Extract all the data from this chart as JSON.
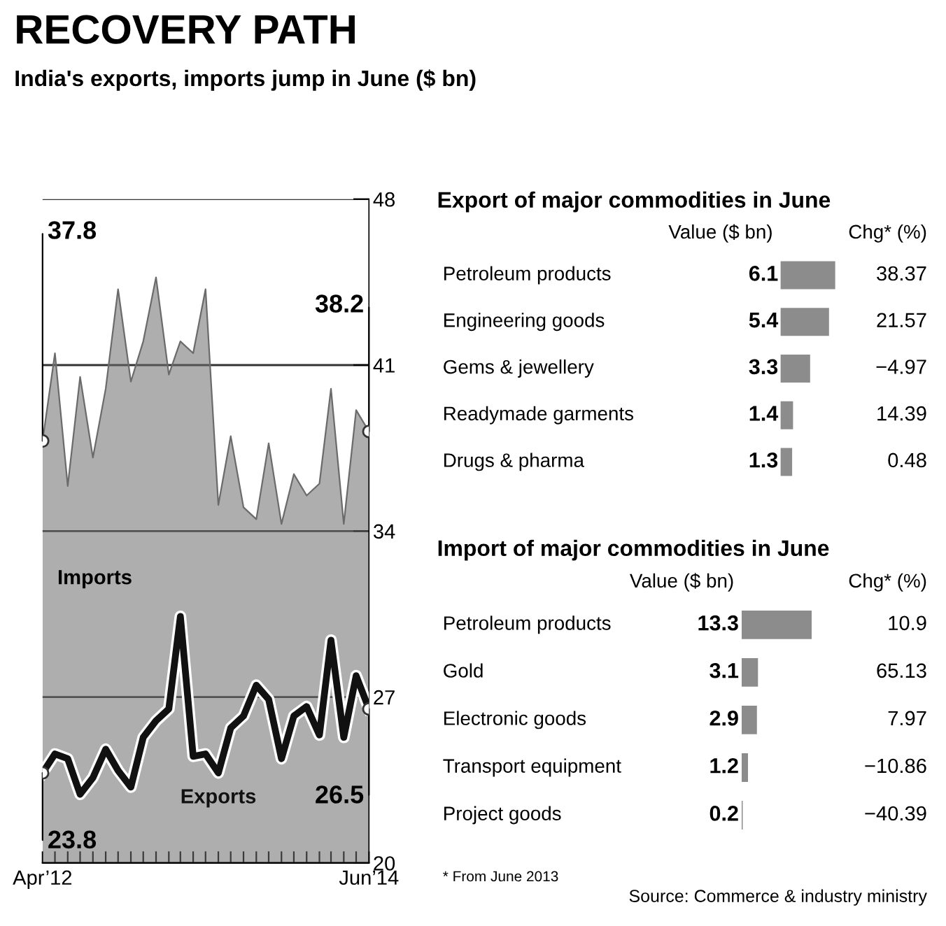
{
  "chart_data": [
    {
      "type": "line",
      "title": "RECOVERY PATH",
      "subtitle": "India's exports, imports jump in June ($ bn)",
      "x": [
        "2012-04",
        "2012-05",
        "2012-06",
        "2012-07",
        "2012-08",
        "2012-09",
        "2012-10",
        "2012-11",
        "2012-12",
        "2013-01",
        "2013-02",
        "2013-03",
        "2013-04",
        "2013-05",
        "2013-06",
        "2013-07",
        "2013-08",
        "2013-09",
        "2013-10",
        "2013-11",
        "2013-12",
        "2014-01",
        "2014-02",
        "2014-03",
        "2014-04",
        "2014-05",
        "2014-06"
      ],
      "series": [
        {
          "name": "Imports",
          "type": "area",
          "color": "#6b6b6b",
          "values": [
            37.8,
            41.5,
            35.9,
            40.5,
            37.1,
            40.0,
            44.2,
            40.3,
            42.0,
            44.7,
            40.6,
            42.0,
            41.5,
            44.2,
            35.1,
            38.0,
            35.0,
            34.5,
            37.7,
            34.3,
            36.4,
            35.5,
            36.0,
            40.0,
            34.3,
            39.1,
            38.2
          ]
        },
        {
          "name": "Exports",
          "type": "line",
          "color": "#111111",
          "values": [
            23.8,
            24.6,
            24.4,
            22.9,
            23.6,
            24.8,
            23.9,
            23.2,
            25.3,
            26.0,
            26.5,
            30.4,
            24.5,
            24.6,
            23.8,
            25.7,
            26.2,
            27.5,
            26.9,
            24.4,
            26.2,
            26.6,
            25.4,
            29.4,
            25.3,
            27.9,
            26.5
          ]
        }
      ],
      "annotations": [
        {
          "text": "37.8",
          "x": "2012-04",
          "y": 37.8
        },
        {
          "text": "38.2",
          "x": "2014-06",
          "y": 38.2
        },
        {
          "text": "23.8",
          "x": "2012-04",
          "y": 23.8
        },
        {
          "text": "26.5",
          "x": "2014-06",
          "y": 26.5
        }
      ],
      "xlim": [
        "2012-04",
        "2014-06"
      ],
      "xticks": [
        {
          "value": "2012-04",
          "label": "Apr’12"
        },
        {
          "value": "2012-05",
          "label": null
        },
        {
          "value": "2012-06",
          "label": null
        },
        {
          "value": "2012-07",
          "label": null
        },
        {
          "value": "2012-08",
          "label": null
        },
        {
          "value": "2012-09",
          "label": null
        },
        {
          "value": "2012-10",
          "label": null
        },
        {
          "value": "2012-11",
          "label": null
        },
        {
          "value": "2012-12",
          "label": null
        },
        {
          "value": "2013-01",
          "label": null
        },
        {
          "value": "2013-02",
          "label": null
        },
        {
          "value": "2013-03",
          "label": null
        },
        {
          "value": "2013-04",
          "label": null
        },
        {
          "value": "2013-05",
          "label": null
        },
        {
          "value": "2013-06",
          "label": null
        },
        {
          "value": "2013-07",
          "label": null
        },
        {
          "value": "2013-08",
          "label": null
        },
        {
          "value": "2013-09",
          "label": null
        },
        {
          "value": "2013-10",
          "label": null
        },
        {
          "value": "2013-11",
          "label": null
        },
        {
          "value": "2013-12",
          "label": null
        },
        {
          "value": "2014-01",
          "label": null
        },
        {
          "value": "2014-02",
          "label": null
        },
        {
          "value": "2014-03",
          "label": null
        },
        {
          "value": "2014-04",
          "label": null
        },
        {
          "value": "2014-05",
          "label": null
        },
        {
          "value": "2014-06",
          "label": "Jun’14"
        }
      ],
      "ylim": [
        20,
        48
      ],
      "yticks": [
        20,
        27,
        34,
        41,
        48
      ],
      "grid": "y"
    },
    {
      "type": "bar",
      "orientation": "horizontal",
      "title": "Export of major commodities in June",
      "xlabel": "Value ($ bn)",
      "categories": [
        "Petroleum products",
        "Engineering goods",
        "Gems & jewellery",
        "Readymade garments",
        "Drugs & pharma"
      ],
      "values": [
        6.1,
        5.4,
        3.3,
        1.4,
        1.3
      ],
      "color": "#8c8c8c",
      "xlim": [
        0,
        6.1
      ],
      "data_labels": true,
      "annotations": [
        "Chg* (%)",
        "38.37",
        "21.57",
        "−4.97",
        "14.39",
        "0.48"
      ]
    },
    {
      "type": "bar",
      "orientation": "horizontal",
      "title": "Import of major commodities in June",
      "xlabel": "Value ($ bn)",
      "categories": [
        "Petroleum products",
        "Gold",
        "Electronic goods",
        "Transport equipment",
        "Project goods"
      ],
      "values": [
        13.3,
        3.1,
        2.9,
        1.2,
        0.2
      ],
      "color": "#8c8c8c",
      "xlim": [
        0,
        13.3
      ],
      "data_labels": true,
      "annotations": [
        "Chg* (%)",
        "10.9",
        "65.13",
        "7.97",
        "−10.86",
        "−40.39",
        "* From June 2013",
        "Source: Commerce & industry ministry"
      ]
    }
  ]
}
